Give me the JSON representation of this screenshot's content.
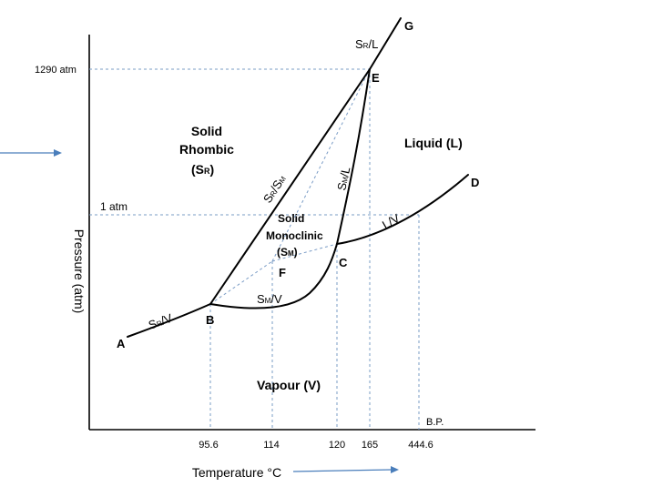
{
  "diagram": {
    "title_note": "",
    "axes": {
      "y_label": "Pressure (atm)",
      "x_label": "Temperature °C"
    },
    "pressure_labels": {
      "p1290": "1290 atm",
      "p1": "1 atm"
    },
    "temperature_ticks": [
      "95.6",
      "114",
      "120",
      "165",
      "444.6"
    ],
    "bp_label": "B.P.",
    "points": {
      "A": "A",
      "B": "B",
      "C": "C",
      "D": "D",
      "E": "E",
      "F": "F",
      "G": "G"
    },
    "phase_labels": {
      "rhombic": [
        "Solid",
        "Rhombic",
        "(S",
        "R",
        ")"
      ],
      "monoclinic": [
        "Solid",
        "Monoclinic",
        "(S",
        "M",
        ")"
      ],
      "liquid": "Liquid (L)",
      "vapour": "Vapour (V)"
    },
    "curve_labels": {
      "sr_l": [
        "S",
        "R",
        "/L"
      ],
      "sr_sm": [
        "S",
        "R",
        "/S",
        "M"
      ],
      "sm_l": [
        "S",
        "M",
        "/L"
      ],
      "l_v": "L/V",
      "sm_v": [
        "S",
        "M",
        "/V"
      ],
      "sr_v": [
        "S",
        "R",
        "/V"
      ]
    },
    "colors": {
      "curve": "#000000",
      "dashed": "#7a9cc6",
      "arrow": "#4a7ebb"
    }
  }
}
